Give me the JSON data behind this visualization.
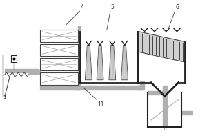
{
  "bg": "white",
  "lc": "#444444",
  "lg": "#aaaaaa",
  "dg": "#222222",
  "pipe_gray": "#b0b0b0",
  "hatch_gray": "#c0c0c0",
  "box_fill": "white",
  "fig_w": 3.0,
  "fig_h": 2.0,
  "dpi": 100
}
